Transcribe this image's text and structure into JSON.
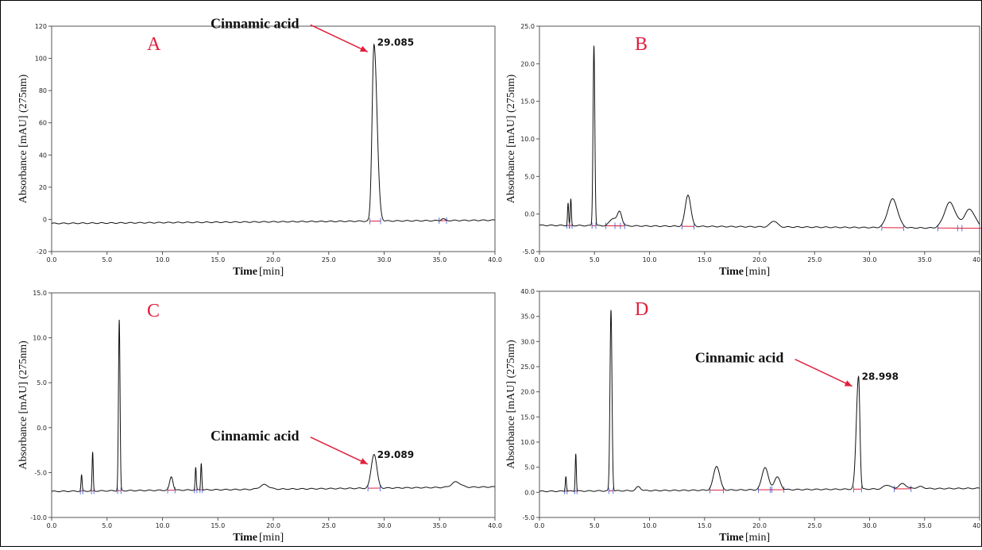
{
  "panel_letter_color": "#e0203c",
  "arrow_color": "#e0203c",
  "trace_color": "#111111",
  "baseline_color": "#e0203c",
  "chart_data": [
    {
      "id": "A",
      "type": "line",
      "panel_label": "A",
      "xlabel": "Time",
      "xunit": "[min]",
      "ylabel": "Absorbance [mAU] (275nm)",
      "xlim": [
        0,
        40
      ],
      "ylim": [
        -20,
        120
      ],
      "xticks": [
        "0.0",
        "5.0",
        "10.0",
        "15.0",
        "20.0",
        "25.0",
        "30.0",
        "35.0",
        "40.0"
      ],
      "yticks": [
        "-20",
        "0",
        "20",
        "40",
        "60",
        "80",
        "100",
        "120"
      ],
      "baseline": [
        [
          0,
          -2.5
        ],
        [
          40,
          -0.5
        ]
      ],
      "peaks": [
        {
          "t": 29.085,
          "h": 110,
          "w": 0.17,
          "tail": 1.6
        },
        {
          "t": 35.3,
          "h": 1.2,
          "w": 0.15
        }
      ],
      "annotations": [
        {
          "text": "Cinnamic acid",
          "rt_label": "29.085",
          "t": 29.085,
          "y": 110
        }
      ]
    },
    {
      "id": "B",
      "type": "line",
      "panel_label": "B",
      "xlabel": "Time",
      "xunit": "[min]",
      "ylabel": "Absorbance [mAU] (275nm)",
      "xlim": [
        0,
        40
      ],
      "ylim": [
        -5,
        25
      ],
      "xticks": [
        "0.0",
        "5.0",
        "10.0",
        "15.0",
        "20.0",
        "25.0",
        "30.0",
        "35.0",
        "40.0"
      ],
      "yticks": [
        "-5.0",
        "0.0",
        "5.0",
        "10.0",
        "15.0",
        "20.0",
        "25.0"
      ],
      "baseline": [
        [
          0,
          -1.5
        ],
        [
          40,
          -1.9
        ]
      ],
      "peaks": [
        {
          "t": 2.6,
          "h": 3.0,
          "w": 0.05
        },
        {
          "t": 2.85,
          "h": 3.5,
          "w": 0.05
        },
        {
          "t": 4.95,
          "h": 24,
          "w": 0.08
        },
        {
          "t": 6.7,
          "h": 1.0,
          "w": 0.3
        },
        {
          "t": 7.3,
          "h": 1.8,
          "w": 0.2
        },
        {
          "t": 13.5,
          "h": 4.2,
          "w": 0.25
        },
        {
          "t": 21.3,
          "h": 0.8,
          "w": 0.3
        },
        {
          "t": 32.1,
          "h": 3.8,
          "w": 0.45
        },
        {
          "t": 37.3,
          "h": 3.4,
          "w": 0.5
        },
        {
          "t": 39.1,
          "h": 2.5,
          "w": 0.5
        }
      ],
      "annotations": []
    },
    {
      "id": "C",
      "type": "line",
      "panel_label": "C",
      "xlabel": "Time",
      "xunit": "[min]",
      "ylabel": "Absorbance [mAU] (275nm)",
      "xlim": [
        0,
        40
      ],
      "ylim": [
        -10,
        15
      ],
      "xticks": [
        "0.0",
        "5.0",
        "10.0",
        "15.0",
        "20.0",
        "25.0",
        "30.0",
        "35.0",
        "40.0"
      ],
      "yticks": [
        "-10.0",
        "-5.0",
        "0.0",
        "5.0",
        "10.0",
        "15.0"
      ],
      "baseline": [
        [
          0,
          -7.1
        ],
        [
          40,
          -6.6
        ]
      ],
      "peaks": [
        {
          "t": 2.7,
          "h": 1.8,
          "w": 0.05
        },
        {
          "t": 3.7,
          "h": 4.3,
          "w": 0.05
        },
        {
          "t": 6.1,
          "h": 19.0,
          "w": 0.07
        },
        {
          "t": 10.8,
          "h": 1.5,
          "w": 0.15
        },
        {
          "t": 13.0,
          "h": 2.5,
          "w": 0.05
        },
        {
          "t": 13.5,
          "h": 3.0,
          "w": 0.05
        },
        {
          "t": 19.2,
          "h": 0.5,
          "w": 0.4
        },
        {
          "t": 29.089,
          "h": 3.8,
          "w": 0.25
        },
        {
          "t": 36.5,
          "h": 0.6,
          "w": 0.4
        }
      ],
      "annotations": [
        {
          "text": "Cinnamic acid",
          "rt_label": "29.089",
          "t": 29.089,
          "y": -3.0
        }
      ]
    },
    {
      "id": "D",
      "type": "line",
      "panel_label": "D",
      "xlabel": "Time",
      "xunit": "[min]",
      "ylabel": "Absorbance [mAU] (275nm)",
      "xlim": [
        0,
        40
      ],
      "ylim": [
        -5,
        40
      ],
      "xticks": [
        "0.0",
        "5.0",
        "10.0",
        "15.0",
        "20.0",
        "25.0",
        "30.0",
        "35.0",
        "40.0"
      ],
      "yticks": [
        "-5.0",
        "0.0",
        "5.0",
        "10.0",
        "15.0",
        "20.0",
        "25.0",
        "30.0",
        "35.0",
        "40.0"
      ],
      "baseline": [
        [
          0,
          0.2
        ],
        [
          40,
          0.8
        ]
      ],
      "peaks": [
        {
          "t": 2.4,
          "h": 3.0,
          "w": 0.05
        },
        {
          "t": 3.3,
          "h": 7.5,
          "w": 0.05
        },
        {
          "t": 6.5,
          "h": 36,
          "w": 0.09
        },
        {
          "t": 9.0,
          "h": 0.8,
          "w": 0.2
        },
        {
          "t": 16.1,
          "h": 4.8,
          "w": 0.28
        },
        {
          "t": 20.5,
          "h": 4.5,
          "w": 0.28
        },
        {
          "t": 21.6,
          "h": 2.5,
          "w": 0.28
        },
        {
          "t": 28.998,
          "h": 22.5,
          "w": 0.2,
          "tail": 0.6
        },
        {
          "t": 31.6,
          "h": 0.8,
          "w": 0.3
        },
        {
          "t": 33.0,
          "h": 1.0,
          "w": 0.35
        },
        {
          "t": 34.6,
          "h": 0.4,
          "w": 0.35
        }
      ],
      "annotations": [
        {
          "text": "Cinnamic acid",
          "rt_label": "28.998",
          "t": 28.998,
          "y": 23.0
        }
      ]
    }
  ]
}
